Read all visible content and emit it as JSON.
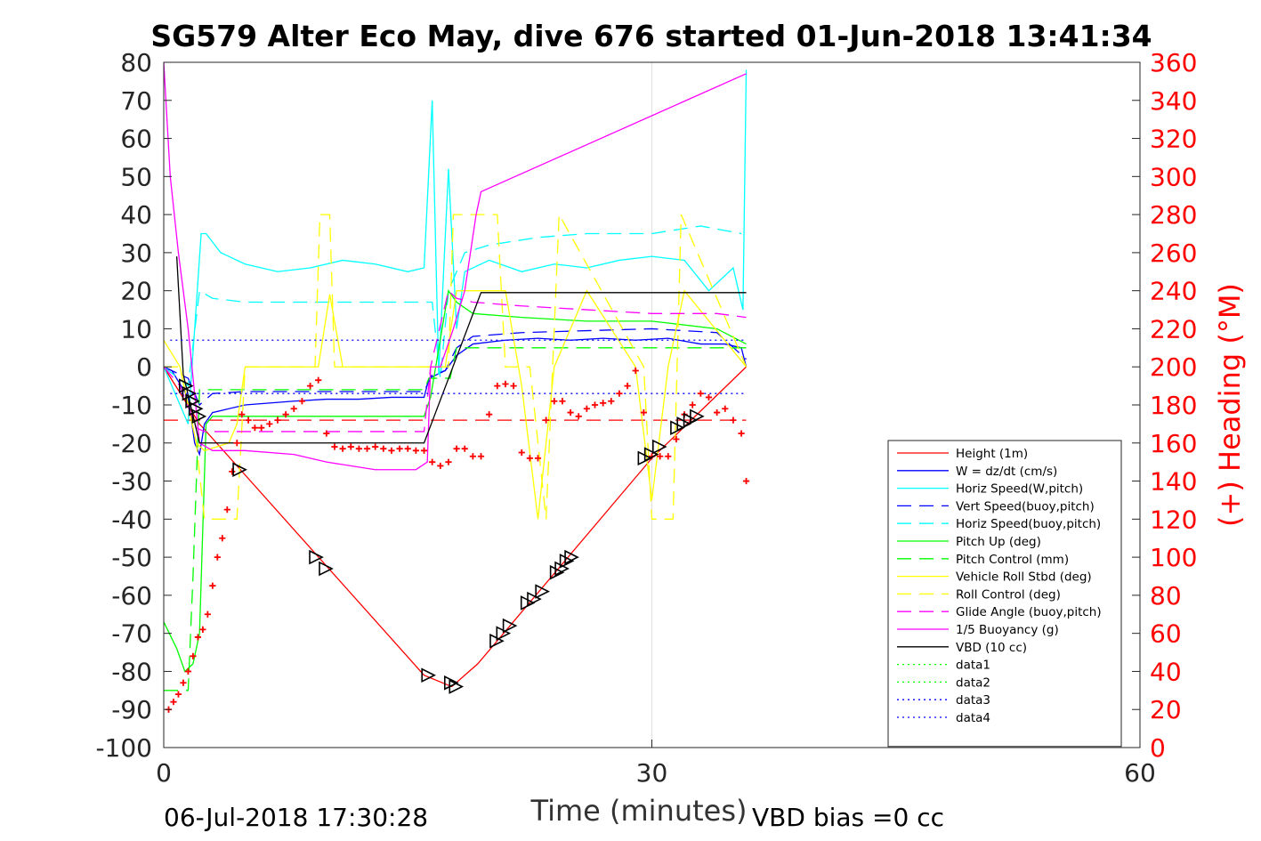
{
  "chart_data": {
    "type": "line",
    "title": "SG579 Alter Eco May, dive 676 started 01-Jun-2018 13:41:34",
    "xlabel": "Time (minutes)",
    "ylabel_right": "(+) Heading (°M)",
    "footer_left": "06-Jul-2018 17:30:28",
    "footer_right": "VBD bias =0 cc",
    "xlim": [
      0,
      60
    ],
    "ylim": [
      -100,
      80
    ],
    "ylim_right": [
      0,
      360
    ],
    "x_ticks": [
      0,
      30,
      60
    ],
    "y_ticks": [
      80,
      70,
      60,
      50,
      40,
      30,
      20,
      10,
      0,
      -10,
      -20,
      -30,
      -40,
      -50,
      -60,
      -70,
      -80,
      -90,
      -100
    ],
    "y_ticks_right": [
      360,
      340,
      320,
      300,
      280,
      260,
      240,
      220,
      200,
      180,
      160,
      140,
      120,
      100,
      80,
      60,
      40,
      20,
      0
    ],
    "grid": "x only at 30",
    "legend_position": "bottom-right",
    "colors": {
      "red": "#ff0000",
      "blue": "#0000ff",
      "cyan": "#00ffff",
      "green": "#00ff00",
      "yellow": "#ffff00",
      "magenta": "#ff00ff",
      "black": "#000000"
    },
    "series": [
      {
        "name": "Height (1m)",
        "color": "#ff0000",
        "style": "solid",
        "x": [
          0,
          2.2,
          16,
          17.7,
          19.3,
          30,
          35.8
        ],
        "y": [
          0,
          -15,
          -81,
          -84,
          -78,
          -24,
          0
        ]
      },
      {
        "name": "W = dz/dt (cm/s)",
        "color": "#0000ff",
        "style": "solid",
        "x": [
          0,
          0.5,
          1.5,
          1.9,
          2.2,
          2.5,
          3,
          5,
          8,
          10,
          12,
          14,
          16,
          16.3,
          17.3,
          18,
          19,
          21,
          23,
          25,
          27,
          29,
          31,
          33,
          34.5,
          35.5,
          35.8
        ],
        "y": [
          0,
          -1,
          -8,
          -20,
          -23,
          -15,
          -12,
          -10,
          -9,
          -8.5,
          -8.5,
          -8,
          -8,
          -3,
          -1,
          3,
          6,
          7,
          7.5,
          7,
          7.5,
          7,
          7.5,
          6,
          6,
          5,
          0
        ]
      },
      {
        "name": "Horiz Speed(W,pitch)",
        "color": "#00ffff",
        "style": "solid",
        "x": [
          0,
          1.5,
          2.3,
          2.6,
          3.5,
          5,
          7,
          9,
          11,
          13,
          15,
          16,
          16.5,
          16.9,
          17.5,
          18,
          18.5,
          20,
          22,
          24,
          26,
          28,
          30,
          32,
          33.5,
          35,
          35.6,
          35.8
        ],
        "y": [
          0,
          -15,
          35,
          35,
          30,
          27,
          25,
          26,
          28,
          27,
          25,
          26,
          70,
          -2,
          52,
          10,
          25,
          28,
          25,
          27,
          26,
          28,
          29,
          28,
          20,
          26,
          15,
          78
        ]
      },
      {
        "name": "Vert Speed(buoy,pitch)",
        "color": "#0000ff",
        "style": "dashed",
        "x": [
          0,
          1.5,
          2.2,
          3,
          5,
          10,
          16,
          16.5,
          17.3,
          18,
          19,
          22,
          26,
          30,
          34,
          35.8
        ],
        "y": [
          0,
          -3,
          -10,
          -7,
          -6.5,
          -6.5,
          -6.5,
          -2,
          -1,
          5,
          8,
          9,
          9.5,
          10,
          9,
          2
        ]
      },
      {
        "name": "Horiz Speed(buoy,pitch)",
        "color": "#00ffff",
        "style": "dashed",
        "x": [
          0,
          1.5,
          2.2,
          3,
          5,
          10,
          16,
          16.5,
          17,
          17.5,
          18.5,
          20,
          23,
          26,
          30,
          33,
          35.5
        ],
        "y": [
          0,
          -5,
          20,
          18,
          17,
          17,
          17,
          17,
          -3,
          20,
          30,
          32,
          34,
          35,
          35,
          37,
          35
        ]
      },
      {
        "name": "Pitch Up (deg)",
        "color": "#00ff00",
        "style": "solid",
        "x": [
          0,
          0.8,
          1.3,
          1.8,
          2.2,
          2.6,
          3,
          5,
          10,
          16,
          16.4,
          17.5,
          18,
          19,
          22,
          26,
          30,
          34,
          35.8
        ],
        "y": [
          -67,
          -74,
          -80,
          -78,
          -70,
          -15,
          -13,
          -13,
          -13,
          -13,
          -8,
          20,
          17,
          14,
          13,
          12,
          12,
          10,
          6
        ]
      },
      {
        "name": "Pitch Control (mm)",
        "color": "#00ff00",
        "style": "dashed",
        "x": [
          0,
          0.6,
          1.5,
          1.8,
          2.2,
          3,
          16,
          16.3,
          17.6,
          18,
          35.8
        ],
        "y": [
          -85,
          -85,
          -85,
          -55,
          -6,
          -6,
          -6,
          -3,
          -3,
          5,
          5
        ]
      },
      {
        "name": "Vehicle Roll Stbd (deg)",
        "color": "#ffff00",
        "style": "solid",
        "x": [
          0,
          1,
          2,
          2.5,
          4,
          4.5,
          5,
          9.5,
          10.2,
          11,
          16,
          17.3,
          18,
          21,
          22,
          23,
          24,
          26,
          29,
          30,
          31,
          32,
          35.8
        ],
        "y": [
          7,
          0,
          -20,
          -22,
          -20,
          -15,
          0,
          0,
          19,
          0,
          0,
          0,
          20,
          20,
          -5,
          -40,
          0,
          20,
          0,
          -35,
          0,
          20,
          0
        ]
      },
      {
        "name": "Roll Control (deg)",
        "color": "#ffff00",
        "style": "dashed",
        "x": [
          0,
          1,
          2,
          2.5,
          4.5,
          5,
          9.3,
          9.6,
          10.2,
          10.5,
          17.5,
          17.8,
          20.5,
          21,
          22.5,
          23.5,
          24.3,
          29.5,
          30,
          31.3,
          31.8,
          35.8
        ],
        "y": [
          0,
          0,
          -20,
          -40,
          -40,
          0,
          0,
          40,
          40,
          0,
          0,
          40,
          40,
          0,
          0,
          -40,
          40,
          0,
          -40,
          -40,
          40,
          0
        ]
      },
      {
        "name": "Glide Angle (buoy,pitch)",
        "color": "#ff00ff",
        "style": "dashed",
        "x": [
          0,
          1,
          2,
          2.5,
          3,
          5,
          10,
          16,
          16.4,
          17.5,
          18,
          19,
          22,
          26,
          30,
          34,
          35.8
        ],
        "y": [
          0,
          -5,
          -16,
          -17,
          -17,
          -17,
          -17,
          -17,
          0,
          20,
          18,
          17,
          16,
          15,
          14,
          14,
          13
        ]
      },
      {
        "name": "1/5 Buoyancy (g)",
        "color": "#ff00ff",
        "style": "solid",
        "x": [
          0,
          0.4,
          0.9,
          1.5,
          2.2,
          3,
          5,
          8,
          10,
          13,
          15.5,
          16.2,
          16.4,
          17,
          17.8,
          18.5,
          19.2,
          19.5,
          35.8
        ],
        "y": [
          80,
          50,
          30,
          10,
          -20,
          -22,
          -22,
          -23,
          -25,
          -27,
          -27,
          -25,
          0,
          0,
          10,
          20,
          40,
          46,
          77
        ]
      },
      {
        "name": "VBD (10 cc)",
        "color": "#000000",
        "style": "solid",
        "x": [
          0.8,
          1.2,
          2.2,
          2.5,
          15,
          16,
          19.5,
          35.8
        ],
        "y": [
          29,
          -2,
          -20,
          -20,
          -20,
          -20,
          19.5,
          19.5
        ]
      },
      {
        "name": "data1",
        "color": "#00ff00",
        "style": "dotted",
        "x": [],
        "y": []
      },
      {
        "name": "data2",
        "color": "#00ff00",
        "style": "dotted",
        "x": [],
        "y": []
      },
      {
        "name": "data3",
        "color": "#0000ff",
        "style": "dotted",
        "x": [
          0.4,
          35.8
        ],
        "y": [
          7,
          7
        ]
      },
      {
        "name": "data4",
        "color": "#0000ff",
        "style": "dotted",
        "x": [
          0.4,
          35.8
        ],
        "y": [
          -7,
          -7
        ]
      }
    ],
    "unlisted_lines": [
      {
        "color": "#ff0000",
        "style": "dashed",
        "x": [
          0,
          35.8
        ],
        "y": [
          -14,
          -14
        ]
      }
    ],
    "heading_points": {
      "color": "#ff0000",
      "marker": "+",
      "axis": "right",
      "x": [
        0.3,
        0.6,
        0.9,
        1.2,
        1.5,
        1.8,
        2.1,
        2.4,
        2.7,
        3.0,
        3.3,
        3.6,
        3.9,
        4.2,
        4.5,
        4.8,
        5.2,
        5.6,
        6.0,
        6.5,
        7.0,
        7.5,
        8.0,
        8.5,
        9.0,
        9.5,
        10.0,
        10.5,
        11.0,
        11.5,
        12.0,
        12.5,
        13.0,
        13.5,
        14.0,
        14.5,
        15.0,
        15.5,
        16.0,
        16.5,
        17.0,
        17.5,
        18.0,
        18.5,
        19.0,
        19.5,
        20.0,
        20.5,
        21.0,
        21.5,
        22.0,
        22.5,
        23.0,
        23.5,
        24.0,
        24.5,
        25.0,
        25.5,
        26.0,
        26.5,
        27.0,
        27.5,
        28.0,
        28.5,
        29.0,
        29.5,
        30.0,
        30.5,
        31.0,
        31.5,
        32.0,
        32.5,
        33.0,
        33.5,
        34.0,
        34.5,
        35.0,
        35.5,
        35.8
      ],
      "y": [
        20,
        24,
        28,
        34,
        40,
        48,
        58,
        62,
        70,
        85,
        100,
        110,
        125,
        145,
        160,
        175,
        172,
        168,
        168,
        170,
        172,
        175,
        178,
        182,
        190,
        193,
        165,
        158,
        157,
        158,
        157,
        157,
        158,
        157,
        156,
        157,
        157,
        156,
        156,
        150,
        148,
        150,
        157,
        157,
        153,
        153,
        175,
        190,
        191,
        190,
        155,
        152,
        152,
        172,
        182,
        182,
        176,
        174,
        178,
        180,
        181,
        182,
        186,
        190,
        198,
        176,
        153,
        153,
        153,
        162,
        175,
        180,
        186,
        184,
        176,
        178,
        172,
        165,
        140
      ]
    },
    "triangle_markers": {
      "color": "#000000",
      "marker": "triangle",
      "x": [
        1.3,
        1.5,
        1.7,
        1.9,
        2.1,
        4.6,
        9.3,
        9.9,
        16.2,
        17.6,
        17.9,
        20.4,
        20.8,
        21.2,
        22.3,
        22.7,
        23.2,
        24.1,
        24.4,
        24.7,
        25.0,
        29.5,
        29.9,
        30.4,
        31.5,
        31.9,
        32.3,
        32.7
      ],
      "y": [
        -5,
        -7,
        -9,
        -11,
        -13,
        -27,
        -50,
        -53,
        -81,
        -83,
        -84,
        -72,
        -70,
        -68,
        -62,
        -61,
        -59,
        -54,
        -53,
        -51,
        -50,
        -24,
        -23,
        -21,
        -16,
        -15,
        -14,
        -13
      ]
    }
  }
}
